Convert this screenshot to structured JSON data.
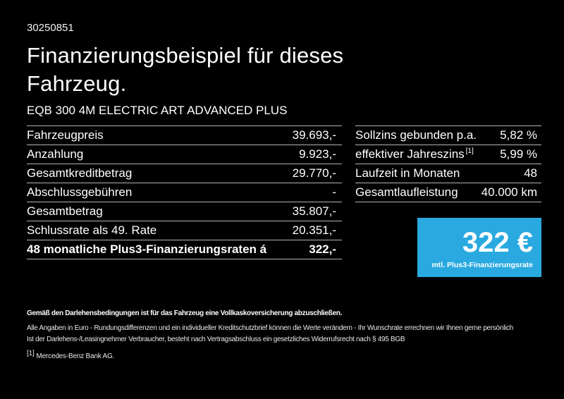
{
  "page": {
    "bg_color": "#000000",
    "text_color": "#ffffff",
    "doc_number": "30250851",
    "title": "Finanzierungsbeispiel für dieses Fahrzeug."
  },
  "vehicle": {
    "model_name": "EQB 300 4M ELECTRIC ART ADVANCED PLUS"
  },
  "financing_table": {
    "rows": [
      {
        "label": "Fahrzeugpreis",
        "value": "39.693,-",
        "bold": false
      },
      {
        "label": "Anzahlung",
        "value": "9.923,-",
        "bold": false
      },
      {
        "label": "Gesamtkreditbetrag",
        "value": "29.770,-",
        "bold": false
      },
      {
        "label": "Abschlussgebühren",
        "value": "-",
        "bold": false
      },
      {
        "label": "Gesamtbetrag",
        "value": "35.807,-",
        "bold": false
      },
      {
        "label": "Schlussrate als 49. Rate",
        "value": "20.351,-",
        "bold": false
      },
      {
        "label": "48 monatliche Plus3-Finanzierungsraten á",
        "value": "322,-",
        "bold": true
      }
    ]
  },
  "conditions_table": {
    "rows": [
      {
        "label": "Sollzins gebunden p.a.",
        "value": "5,82 %"
      },
      {
        "label": "effektiver Jahreszins",
        "label_sup": "[1]",
        "value": "5,99 %"
      },
      {
        "label": "Laufzeit in Monaten",
        "value": "48"
      },
      {
        "label": "Gesamtlaufleistung",
        "value": "40.000 km"
      }
    ]
  },
  "rate_box": {
    "amount": "322 €",
    "caption": "mtl. Plus3-Finanzierungsrate",
    "bg_color": "#29a9e0",
    "text_color": "#ffffff"
  },
  "disclaimer": {
    "bold_line": "Gemäß den Darlehensbedingungen ist für das Fahrzeug eine Vollkaskoversicherung abzuschließen.",
    "line2": "Alle Angaben in Euro - Rundungsdifferenzen und ein individueller Kreditschutzbrief können die Werte verändern - Ihr Wunschrate errechnen wir Ihnen gerne persönlich",
    "line3": "Ist der Darlehens-/Leasingnehmer Verbraucher, besteht nach Vertragsabschluss ein gesetzliches Widerrufsrecht nach § 495 BGB"
  },
  "footnote": {
    "marker": "[1]",
    "text": "Mercedes-Benz Bank AG."
  }
}
